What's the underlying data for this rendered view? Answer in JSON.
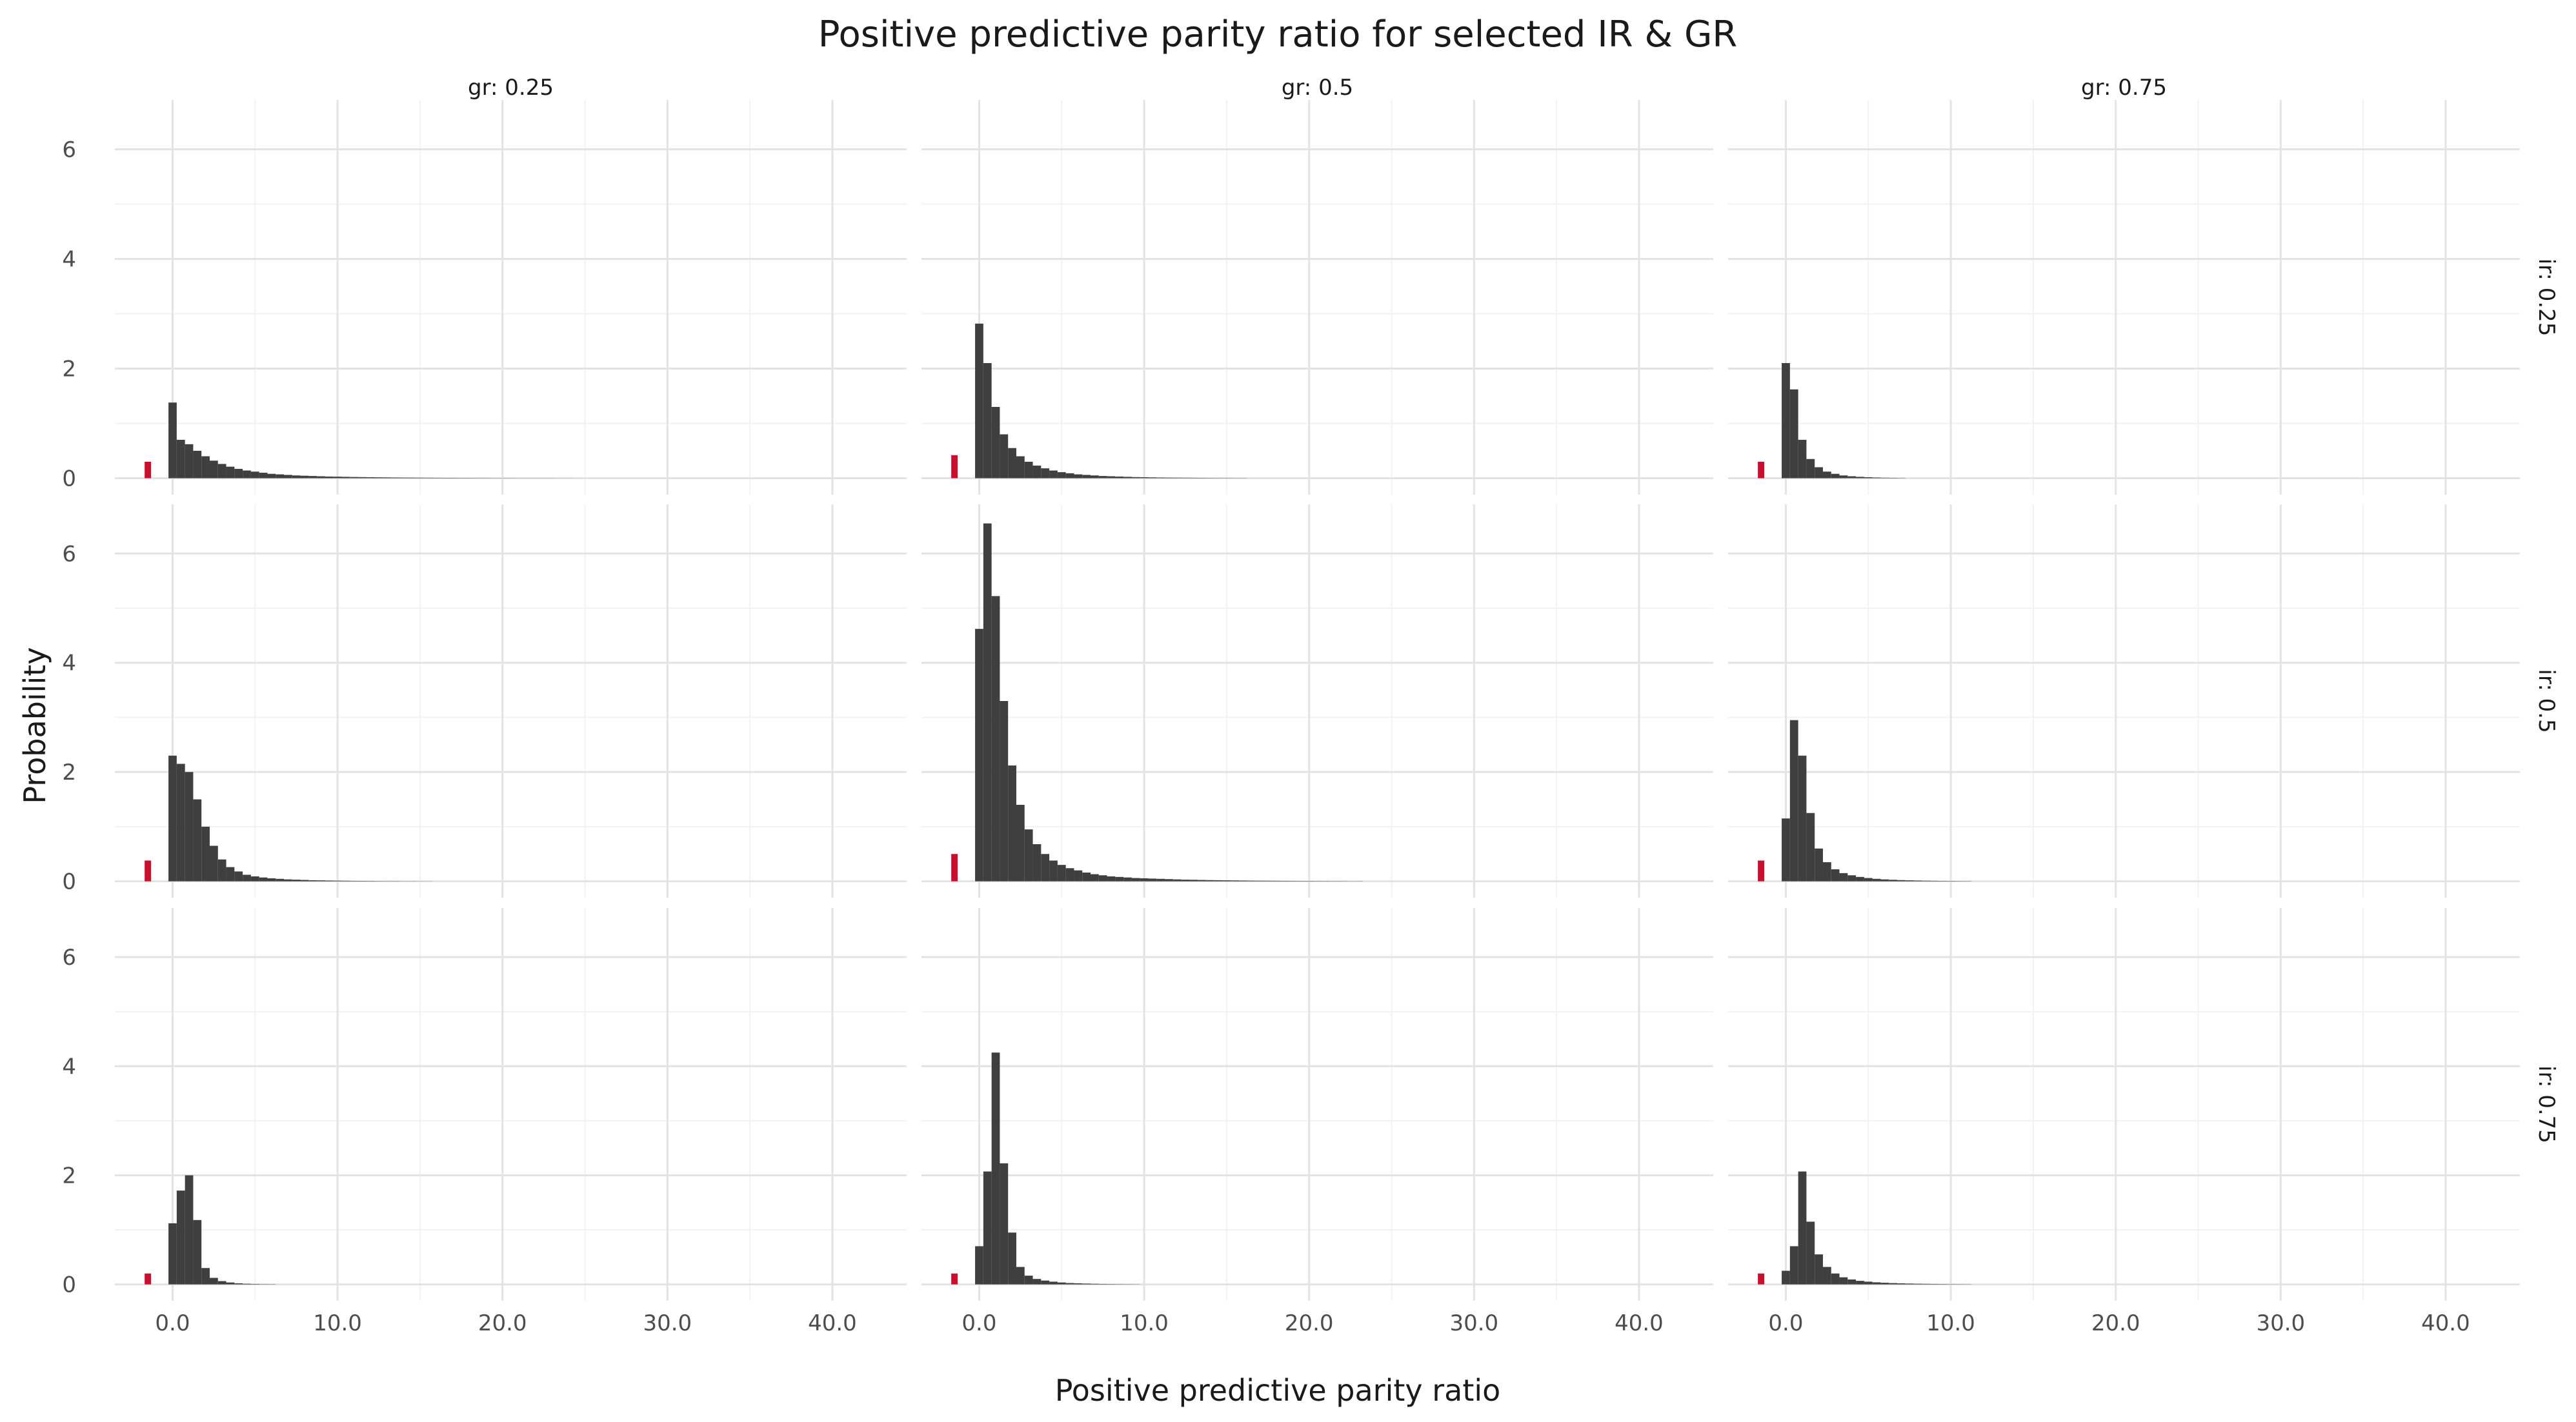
{
  "chart_data": {
    "type": "bar",
    "title": "Positive predictive parity ratio for selected IR & GR",
    "xlabel": "Positive predictive parity ratio",
    "ylabel": "Probability",
    "xlim": [
      -3.5,
      44.5
    ],
    "ylim": [
      -0.3,
      6.9
    ],
    "x_ticks": [
      0,
      10,
      20,
      30,
      40
    ],
    "x_tick_labels": [
      "0.0",
      "10.0",
      "20.0",
      "30.0",
      "40.0"
    ],
    "y_ticks": [
      0,
      2,
      4,
      6
    ],
    "y_tick_labels": [
      "0",
      "2",
      "4",
      "6"
    ],
    "grid": true,
    "bin_width": 0.5,
    "bin_start": -0.25,
    "nan_bar_position": -1.5,
    "colors": {
      "bars": "#3f3f3f",
      "nan_bar": "#c8102e",
      "grid": "#e3e3e3"
    },
    "col_facets": [
      "gr: 0.25",
      "gr: 0.5",
      "gr: 0.75"
    ],
    "row_facets": [
      "ir: 0.25",
      "ir: 0.5",
      "ir: 0.75"
    ],
    "panels": [
      {
        "row": 0,
        "col": 0,
        "nan_value": 0.3,
        "values": [
          1.38,
          0.7,
          0.62,
          0.5,
          0.4,
          0.32,
          0.26,
          0.21,
          0.17,
          0.14,
          0.12,
          0.1,
          0.08,
          0.07,
          0.06,
          0.05,
          0.045,
          0.04,
          0.035,
          0.03,
          0.028,
          0.025,
          0.022,
          0.02,
          0.018,
          0.016,
          0.014,
          0.012,
          0.011,
          0.01,
          0.009,
          0.008,
          0.007,
          0.006,
          0.006,
          0.005,
          0.005,
          0.004,
          0.004,
          0.003,
          0.003,
          0.003,
          0.002,
          0.002,
          0.002,
          0.002,
          0.002,
          0.001,
          0.001
        ]
      },
      {
        "row": 0,
        "col": 1,
        "nan_value": 0.42,
        "values": [
          2.82,
          2.1,
          1.3,
          0.8,
          0.55,
          0.4,
          0.3,
          0.23,
          0.18,
          0.14,
          0.11,
          0.09,
          0.07,
          0.06,
          0.05,
          0.04,
          0.035,
          0.03,
          0.025,
          0.02,
          0.018,
          0.015,
          0.012,
          0.01,
          0.009,
          0.008,
          0.007,
          0.006,
          0.005,
          0.004,
          0.004,
          0.003,
          0.003
        ]
      },
      {
        "row": 0,
        "col": 2,
        "nan_value": 0.3,
        "values": [
          2.1,
          1.62,
          0.7,
          0.35,
          0.2,
          0.12,
          0.08,
          0.05,
          0.035,
          0.025,
          0.018,
          0.012,
          0.008,
          0.006,
          0.004
        ]
      },
      {
        "row": 1,
        "col": 0,
        "nan_value": 0.38,
        "values": [
          2.3,
          2.15,
          2.0,
          1.5,
          1.0,
          0.65,
          0.4,
          0.26,
          0.18,
          0.12,
          0.09,
          0.07,
          0.055,
          0.045,
          0.035,
          0.03,
          0.025,
          0.02,
          0.017,
          0.014,
          0.012,
          0.01,
          0.008,
          0.007,
          0.006,
          0.005,
          0.004,
          0.004,
          0.003,
          0.003,
          0.002,
          0.002
        ]
      },
      {
        "row": 1,
        "col": 1,
        "nan_value": 0.5,
        "values": [
          4.62,
          6.55,
          5.22,
          3.3,
          2.12,
          1.4,
          0.95,
          0.68,
          0.5,
          0.38,
          0.3,
          0.24,
          0.2,
          0.16,
          0.13,
          0.11,
          0.09,
          0.08,
          0.07,
          0.06,
          0.055,
          0.05,
          0.045,
          0.04,
          0.035,
          0.03,
          0.028,
          0.025,
          0.022,
          0.02,
          0.018,
          0.016,
          0.014,
          0.012,
          0.011,
          0.01,
          0.009,
          0.008,
          0.007,
          0.006,
          0.006,
          0.005,
          0.005,
          0.004,
          0.004,
          0.003,
          0.003
        ]
      },
      {
        "row": 1,
        "col": 2,
        "nan_value": 0.38,
        "values": [
          1.15,
          2.95,
          2.3,
          1.25,
          0.6,
          0.35,
          0.22,
          0.15,
          0.11,
          0.08,
          0.06,
          0.045,
          0.035,
          0.028,
          0.022,
          0.018,
          0.014,
          0.011,
          0.009,
          0.007,
          0.006,
          0.005,
          0.004
        ]
      },
      {
        "row": 2,
        "col": 0,
        "nan_value": 0.2,
        "values": [
          1.12,
          1.72,
          2.0,
          1.18,
          0.3,
          0.12,
          0.06,
          0.035,
          0.02,
          0.012,
          0.008,
          0.005,
          0.004
        ]
      },
      {
        "row": 2,
        "col": 1,
        "nan_value": 0.2,
        "values": [
          0.7,
          2.07,
          4.25,
          2.22,
          0.95,
          0.32,
          0.16,
          0.1,
          0.07,
          0.05,
          0.035,
          0.025,
          0.02,
          0.015,
          0.011,
          0.008,
          0.006,
          0.005,
          0.004,
          0.003
        ]
      },
      {
        "row": 2,
        "col": 2,
        "nan_value": 0.2,
        "values": [
          0.25,
          0.7,
          2.07,
          1.15,
          0.55,
          0.32,
          0.2,
          0.13,
          0.09,
          0.065,
          0.05,
          0.038,
          0.03,
          0.024,
          0.019,
          0.015,
          0.012,
          0.01,
          0.008,
          0.006,
          0.005,
          0.004,
          0.003
        ]
      }
    ]
  }
}
